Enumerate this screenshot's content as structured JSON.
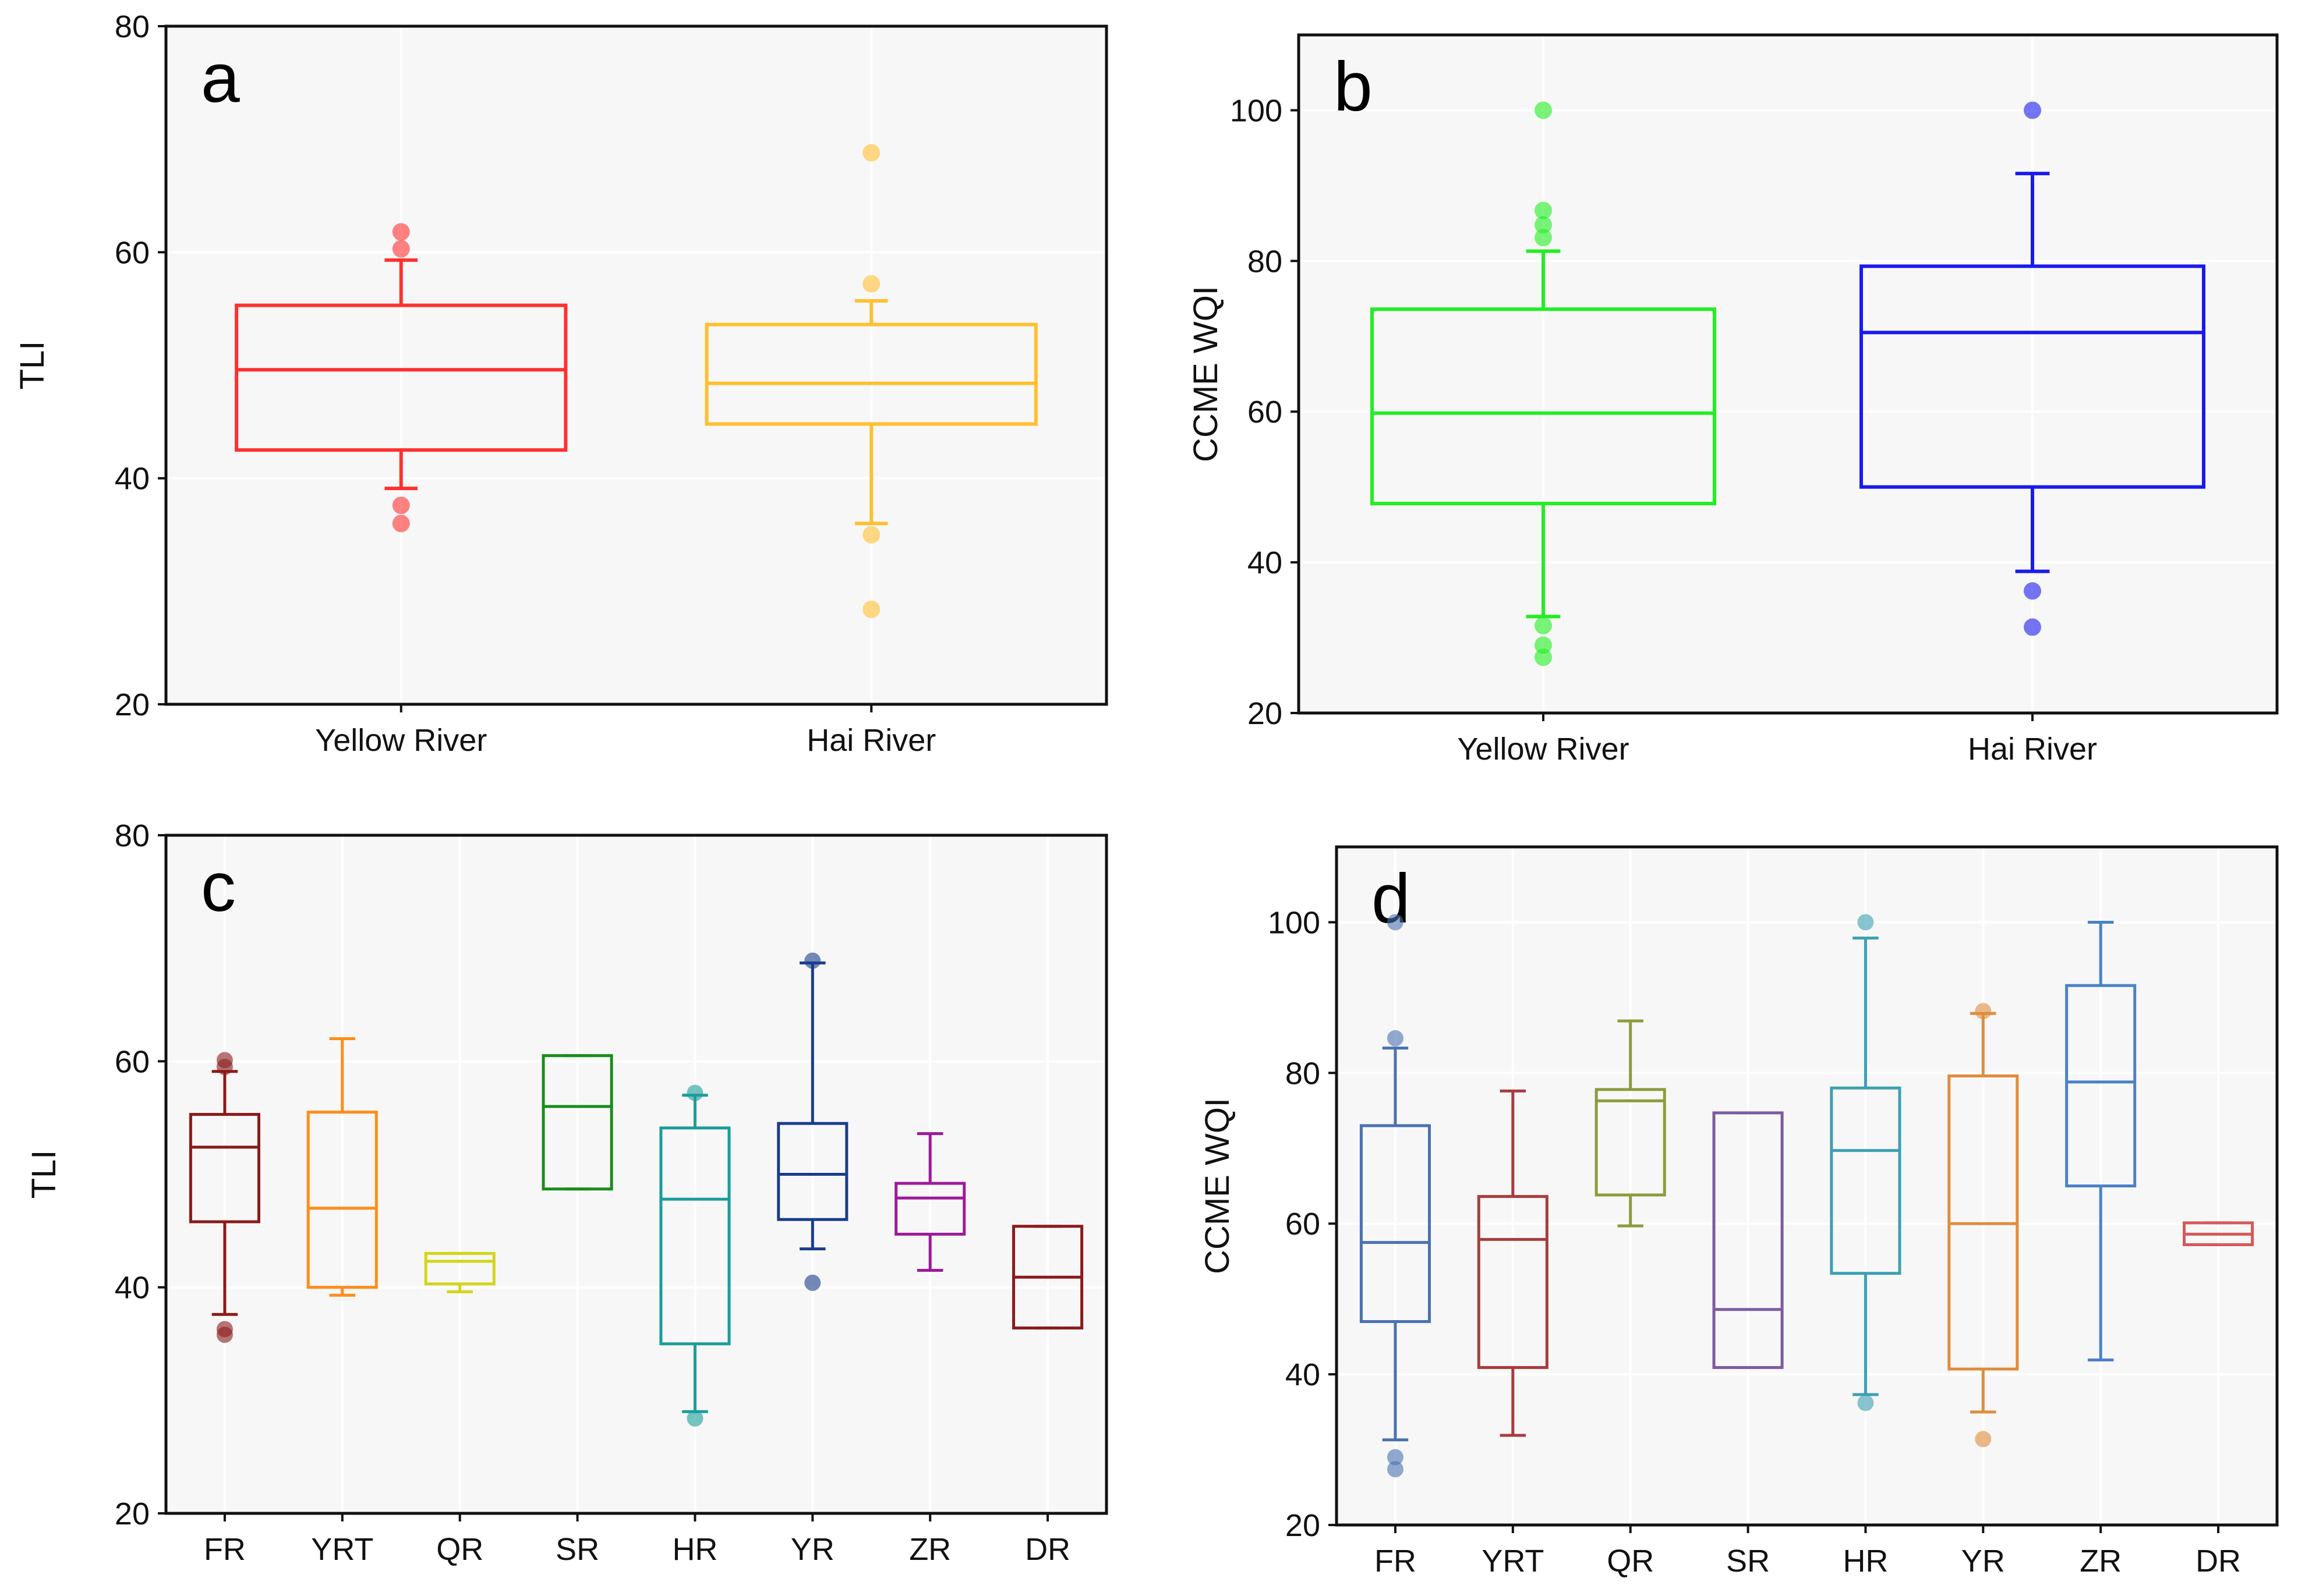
{
  "chart_data": [
    {
      "panel": "a",
      "type": "boxplot",
      "ylabel": "TLI",
      "ylim": [
        20,
        80
      ],
      "yticks": [
        20,
        40,
        60,
        80
      ],
      "grid": true,
      "categories": [
        "Yellow River",
        "Hai River"
      ],
      "boxes": [
        {
          "label": "Yellow River",
          "color": "#ff3030",
          "q1": 42.5,
          "median": 49.6,
          "q3": 55.3,
          "whisker_low": 39.1,
          "whisker_high": 59.3,
          "outliers": [
            36.0,
            37.6,
            60.3,
            61.8
          ]
        },
        {
          "label": "Hai River",
          "color": "#ffc030",
          "q1": 44.8,
          "median": 48.4,
          "q3": 53.6,
          "whisker_low": 36.0,
          "whisker_high": 55.7,
          "outliers": [
            28.4,
            35.0,
            57.2,
            68.8
          ]
        }
      ]
    },
    {
      "panel": "b",
      "type": "boxplot",
      "ylabel": "CCME WQI",
      "ylim": [
        20,
        110
      ],
      "yticks": [
        20,
        40,
        60,
        80,
        100
      ],
      "grid": true,
      "categories": [
        "Yellow River",
        "Hai River"
      ],
      "boxes": [
        {
          "label": "Yellow River",
          "color": "#22ee22",
          "q1": 47.8,
          "median": 59.8,
          "q3": 73.6,
          "whisker_low": 32.8,
          "whisker_high": 81.3,
          "outliers": [
            27.4,
            29.0,
            31.6,
            83.1,
            84.8,
            86.7,
            100
          ]
        },
        {
          "label": "Hai River",
          "color": "#1a1aee",
          "q1": 50.0,
          "median": 70.5,
          "q3": 79.3,
          "whisker_low": 38.8,
          "whisker_high": 91.6,
          "outliers": [
            31.4,
            36.2,
            100
          ]
        }
      ]
    },
    {
      "panel": "c",
      "type": "boxplot",
      "ylabel": "TLI",
      "ylim": [
        20,
        80
      ],
      "yticks": [
        20,
        40,
        60,
        80
      ],
      "grid": true,
      "categories": [
        "FR",
        "YRT",
        "QR",
        "SR",
        "HR",
        "YR",
        "ZR",
        "DR"
      ],
      "boxes": [
        {
          "label": "FR",
          "color": "#8b1a1a",
          "q1": 45.8,
          "median": 52.4,
          "q3": 55.3,
          "whisker_low": 37.6,
          "whisker_high": 59.1,
          "outliers": [
            35.8,
            36.3,
            59.5,
            60.1
          ]
        },
        {
          "label": "YRT",
          "color": "#ff8c1a",
          "q1": 40.0,
          "median": 47.0,
          "q3": 55.5,
          "whisker_low": 39.3,
          "whisker_high": 62.0,
          "outliers": []
        },
        {
          "label": "QR",
          "color": "#d4d41a",
          "q1": 40.3,
          "median": 42.3,
          "q3": 43.0,
          "whisker_low": 39.6,
          "whisker_high": 43.0,
          "outliers": []
        },
        {
          "label": "SR",
          "color": "#1a8c1a",
          "q1": 48.7,
          "median": 56.0,
          "q3": 60.5,
          "whisker_low": 48.7,
          "whisker_high": 60.5,
          "outliers": []
        },
        {
          "label": "HR",
          "color": "#1a9c9c",
          "q1": 35.0,
          "median": 47.8,
          "q3": 54.1,
          "whisker_low": 29.0,
          "whisker_high": 57.0,
          "outliers": [
            28.4,
            57.2
          ]
        },
        {
          "label": "YR",
          "color": "#1a3c8c",
          "q1": 46.0,
          "median": 50.0,
          "q3": 54.5,
          "whisker_low": 43.4,
          "whisker_high": 68.7,
          "outliers": [
            40.4,
            68.9
          ]
        },
        {
          "label": "ZR",
          "color": "#9c1a9c",
          "q1": 44.7,
          "median": 47.9,
          "q3": 49.2,
          "whisker_low": 41.5,
          "whisker_high": 53.6,
          "outliers": []
        },
        {
          "label": "DR",
          "color": "#8b1a1a",
          "q1": 36.4,
          "median": 40.9,
          "q3": 45.4,
          "whisker_low": 36.4,
          "whisker_high": 45.4,
          "outliers": []
        }
      ]
    },
    {
      "panel": "d",
      "type": "boxplot",
      "ylabel": "CCME WQI",
      "ylim": [
        20,
        110
      ],
      "yticks": [
        20,
        40,
        60,
        80,
        100
      ],
      "grid": true,
      "categories": [
        "FR",
        "YRT",
        "QR",
        "SR",
        "HR",
        "YR",
        "ZR",
        "DR"
      ],
      "boxes": [
        {
          "label": "FR",
          "color": "#4a72b0",
          "q1": 47.0,
          "median": 57.5,
          "q3": 73.0,
          "whisker_low": 31.3,
          "whisker_high": 83.3,
          "outliers": [
            27.4,
            29.0,
            84.6,
            100
          ]
        },
        {
          "label": "YRT",
          "color": "#a83c3c",
          "q1": 40.9,
          "median": 57.9,
          "q3": 63.6,
          "whisker_low": 31.9,
          "whisker_high": 77.6,
          "outliers": []
        },
        {
          "label": "QR",
          "color": "#8c9c3c",
          "q1": 63.8,
          "median": 76.3,
          "q3": 77.8,
          "whisker_low": 59.7,
          "whisker_high": 86.9,
          "outliers": []
        },
        {
          "label": "SR",
          "color": "#7c5ca0",
          "q1": 40.9,
          "median": 48.6,
          "q3": 74.7,
          "whisker_low": 40.9,
          "whisker_high": 74.7,
          "outliers": []
        },
        {
          "label": "HR",
          "color": "#3ca0b4",
          "q1": 53.4,
          "median": 69.7,
          "q3": 78.0,
          "whisker_low": 37.3,
          "whisker_high": 97.9,
          "outliers": [
            36.2,
            100
          ]
        },
        {
          "label": "YR",
          "color": "#e08c3c",
          "q1": 40.7,
          "median": 60.0,
          "q3": 79.6,
          "whisker_low": 35.0,
          "whisker_high": 87.9,
          "outliers": [
            31.4,
            88.2
          ]
        },
        {
          "label": "ZR",
          "color": "#4a82c8",
          "q1": 65.0,
          "median": 78.8,
          "q3": 91.6,
          "whisker_low": 41.9,
          "whisker_high": 100,
          "outliers": []
        },
        {
          "label": "DR",
          "color": "#d45a5a",
          "q1": 57.2,
          "median": 58.6,
          "q3": 60.1,
          "whisker_low": 57.2,
          "whisker_high": 60.1,
          "outliers": []
        }
      ]
    }
  ]
}
